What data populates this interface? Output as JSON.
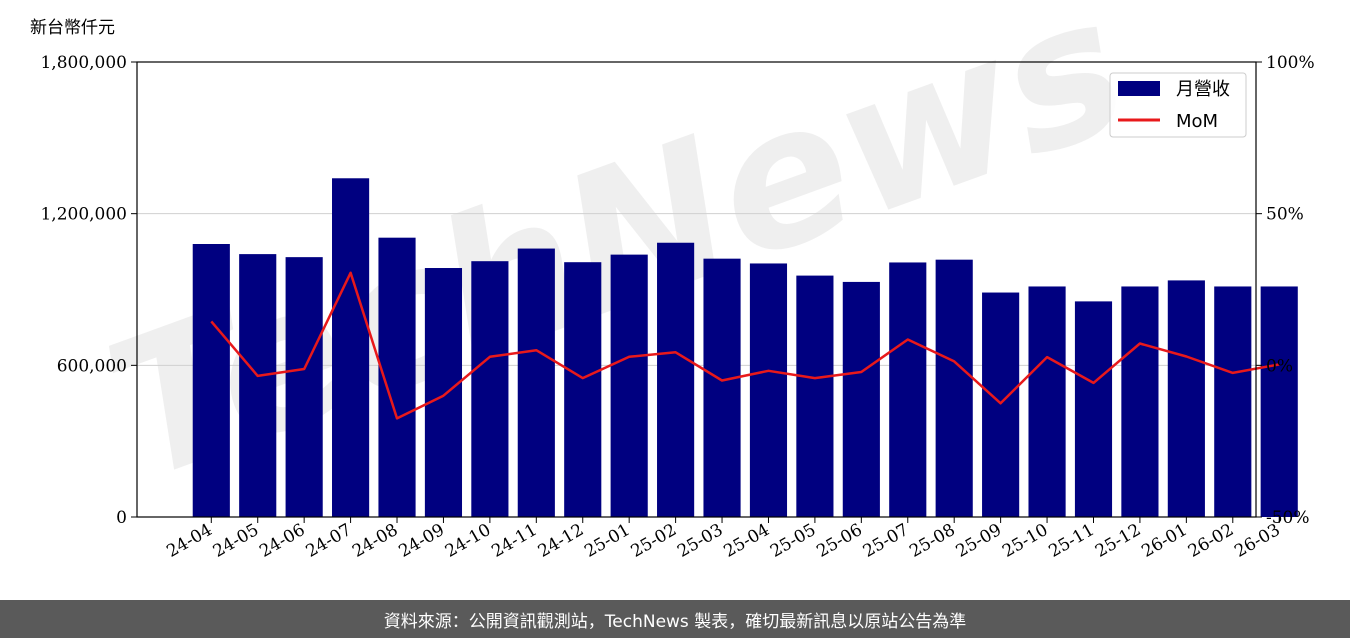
{
  "chart_data": {
    "type": "bar",
    "unit_label": "新台幣仟元",
    "categories": [
      "24-04",
      "24-05",
      "24-06",
      "24-07",
      "24-08",
      "24-09",
      "24-10",
      "24-11",
      "24-12",
      "25-01",
      "25-02",
      "25-03",
      "25-04",
      "25-05",
      "25-06",
      "25-07",
      "25-08",
      "25-09",
      "25-10",
      "25-11",
      "25-12",
      "26-01",
      "26-02",
      "26-03"
    ],
    "series": [
      {
        "name": "月營收",
        "type": "bar",
        "axis": "left",
        "color": "#000080",
        "values": [
          1080000,
          1040000,
          1028000,
          1340000,
          1105000,
          985000,
          1012000,
          1062000,
          1008000,
          1038000,
          1085000,
          1022000,
          1003000,
          955000,
          930000,
          1007000,
          1018000,
          888000,
          912000,
          853000,
          912000,
          936000,
          912000,
          912000
        ]
      },
      {
        "name": "MoM",
        "type": "line",
        "axis": "right",
        "color": "#e8191b",
        "values": [
          14.5,
          -3.5,
          -1.2,
          30.5,
          -17.5,
          -10,
          2.8,
          5,
          -4.2,
          2.8,
          4.3,
          -5,
          -1.8,
          -4.2,
          -2.2,
          8.5,
          1.3,
          -12.5,
          2.7,
          -5.8,
          7.2,
          2.9,
          -2.5,
          0.3
        ]
      }
    ],
    "y_left": {
      "ylim": [
        0,
        1800000
      ],
      "ticks": [
        0,
        600000,
        1200000,
        1800000
      ],
      "tick_labels": [
        "0",
        "600,000",
        "1,200,000",
        "1,800,000"
      ]
    },
    "y_right": {
      "ylim": [
        -50,
        100
      ],
      "ticks": [
        -50,
        0,
        50,
        100
      ],
      "tick_labels": [
        "-50%",
        "0%",
        "50%",
        "100%"
      ]
    },
    "grid": "horizontal",
    "legend_position": "top-right",
    "watermark": "TechNews",
    "footer_text": "資料來源：公開資訊觀測站，TechNews 製表，確切最新訊息以原站公告為準"
  }
}
